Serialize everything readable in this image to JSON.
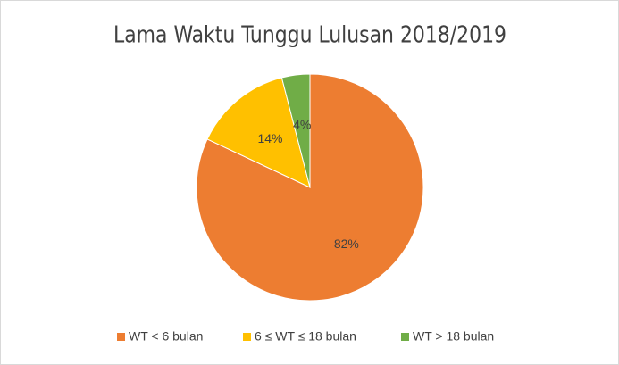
{
  "chart_data": {
    "type": "pie",
    "title": "Lama Waktu Tunggu Lulusan 2018/2019",
    "categories": [
      "WT < 6 bulan",
      "6 ≤ WT ≤ 18 bulan",
      "WT > 18 bulan"
    ],
    "values": [
      82,
      14,
      4
    ],
    "value_labels": [
      "82%",
      "14%",
      "4%"
    ],
    "colors": [
      "#ED7D31",
      "#FFC000",
      "#70AD47"
    ],
    "legend": "bottom"
  }
}
